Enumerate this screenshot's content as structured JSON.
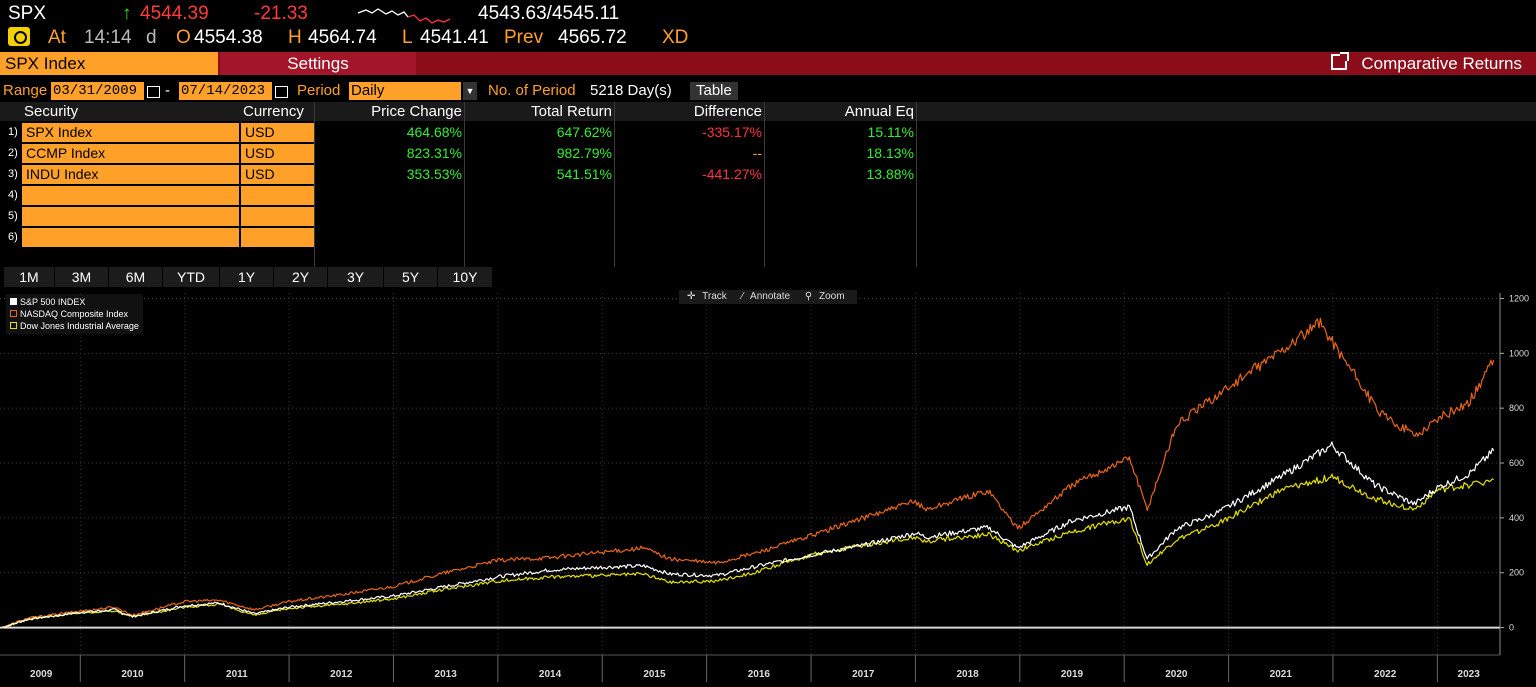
{
  "ticker": {
    "symbol": "SPX",
    "up_arrow": "↑",
    "last": "4544.39",
    "change": "-21.33",
    "bid_ask": "4543.63/4545.11",
    "at_label": "At",
    "time": "14:14",
    "time_suffix": "d",
    "open_label": "O",
    "open": "4554.38",
    "high_label": "H",
    "high": "4564.74",
    "low_label": "L",
    "low": "4541.41",
    "prev_label": "Prev",
    "prev": "4565.72",
    "flag": "XD"
  },
  "tabs": {
    "security": "SPX Index",
    "settings": "Settings",
    "comparative": "Comparative Returns"
  },
  "range": {
    "label": "Range",
    "start": "03/31/2009",
    "dash": "-",
    "end": "07/14/2023",
    "period_label": "Period",
    "period": "Daily",
    "num_label": "No. of Period",
    "num_value": "5218 Day(s)",
    "table_btn": "Table"
  },
  "table": {
    "headers": [
      "Security",
      "Currency",
      "Price Change",
      "Total Return",
      "Difference",
      "Annual Eq"
    ],
    "rows": [
      {
        "num": "1)",
        "security": "SPX Index",
        "currency": "USD",
        "price_change": "464.68%",
        "total_return": "647.62%",
        "difference": "-335.17%",
        "annual_eq": "15.11%"
      },
      {
        "num": "2)",
        "security": "CCMP Index",
        "currency": "USD",
        "price_change": "823.31%",
        "total_return": "982.79%",
        "difference": "--",
        "annual_eq": "18.13%"
      },
      {
        "num": "3)",
        "security": "INDU Index",
        "currency": "USD",
        "price_change": "353.53%",
        "total_return": "541.51%",
        "difference": "-441.27%",
        "annual_eq": "13.88%"
      },
      {
        "num": "4)",
        "security": "",
        "currency": "",
        "price_change": "",
        "total_return": "",
        "difference": "",
        "annual_eq": ""
      },
      {
        "num": "5)",
        "security": "",
        "currency": "",
        "price_change": "",
        "total_return": "",
        "difference": "",
        "annual_eq": ""
      },
      {
        "num": "6)",
        "security": "",
        "currency": "",
        "price_change": "",
        "total_return": "",
        "difference": "",
        "annual_eq": ""
      }
    ]
  },
  "period_buttons": [
    "1M",
    "3M",
    "6M",
    "YTD",
    "1Y",
    "2Y",
    "3Y",
    "5Y",
    "10Y"
  ],
  "chart_toolbar": {
    "track": "Track",
    "annotate": "Annotate",
    "zoom": "Zoom"
  },
  "colors": {
    "spx": "#ffffff",
    "ccmp": "#e8651a",
    "indu": "#e4e000",
    "accent": "#ffa028",
    "tab_bg": "#8b0e1a"
  },
  "chart_data": {
    "type": "line",
    "legend_position": "top-left",
    "grid": true,
    "ylim": [
      -100,
      1220
    ],
    "y_ticks": [
      0,
      200,
      400,
      600,
      800,
      1000,
      1200
    ],
    "x_ticks": [
      "2009",
      "2010",
      "2011",
      "2012",
      "2013",
      "2014",
      "2015",
      "2016",
      "2017",
      "2018",
      "2019",
      "2020",
      "2021",
      "2022",
      "2023"
    ],
    "series": [
      {
        "name": "S&P 500 INDEX",
        "color": "#ffffff",
        "x": [
          2009.25,
          2009.5,
          2010.0,
          2010.33,
          2010.5,
          2011.0,
          2011.33,
          2011.67,
          2012.0,
          2012.5,
          2013.0,
          2013.5,
          2014.0,
          2014.5,
          2015.0,
          2015.4,
          2015.65,
          2016.1,
          2016.5,
          2017.0,
          2017.5,
          2018.0,
          2018.1,
          2018.7,
          2018.98,
          2019.5,
          2020.05,
          2020.22,
          2020.5,
          2020.9,
          2021.5,
          2021.99,
          2022.4,
          2022.78,
          2023.0,
          2023.3,
          2023.54
        ],
        "y": [
          0,
          30,
          55,
          65,
          40,
          80,
          90,
          50,
          75,
          95,
          115,
          150,
          185,
          210,
          220,
          225,
          195,
          190,
          225,
          265,
          300,
          345,
          330,
          365,
          290,
          390,
          440,
          250,
          360,
          420,
          550,
          665,
          520,
          450,
          510,
          560,
          645
        ]
      },
      {
        "name": "NASDAQ Composite Index",
        "color": "#e8651a",
        "x": [
          2009.25,
          2009.5,
          2010.0,
          2010.33,
          2010.5,
          2011.0,
          2011.33,
          2011.67,
          2012.0,
          2012.5,
          2013.0,
          2013.5,
          2014.0,
          2014.5,
          2015.0,
          2015.4,
          2015.65,
          2016.1,
          2016.5,
          2017.0,
          2017.5,
          2018.0,
          2018.1,
          2018.7,
          2018.98,
          2019.5,
          2020.05,
          2020.22,
          2020.5,
          2020.9,
          2021.5,
          2021.88,
          2022.45,
          2022.8,
          2023.0,
          2023.3,
          2023.54
        ],
        "y": [
          0,
          35,
          60,
          75,
          45,
          95,
          100,
          65,
          95,
          120,
          150,
          200,
          245,
          255,
          275,
          290,
          250,
          235,
          275,
          335,
          400,
          460,
          430,
          500,
          360,
          520,
          620,
          430,
          740,
          850,
          1010,
          1110,
          780,
          700,
          760,
          820,
          975
        ]
      },
      {
        "name": "Dow Jones Industrial Average",
        "color": "#e4e000",
        "x": [
          2009.25,
          2009.5,
          2010.0,
          2010.33,
          2010.5,
          2011.0,
          2011.33,
          2011.67,
          2012.0,
          2012.5,
          2013.0,
          2013.5,
          2014.0,
          2014.5,
          2015.0,
          2015.4,
          2015.65,
          2016.1,
          2016.5,
          2017.0,
          2017.5,
          2018.0,
          2018.1,
          2018.7,
          2018.98,
          2019.5,
          2020.05,
          2020.22,
          2020.5,
          2020.9,
          2021.5,
          2021.99,
          2022.4,
          2022.78,
          2023.0,
          2023.3,
          2023.54
        ],
        "y": [
          0,
          30,
          55,
          60,
          40,
          75,
          85,
          45,
          70,
          85,
          105,
          140,
          170,
          185,
          190,
          195,
          165,
          170,
          205,
          265,
          300,
          330,
          315,
          340,
          280,
          350,
          400,
          230,
          320,
          380,
          500,
          550,
          470,
          430,
          500,
          520,
          540
        ]
      }
    ]
  }
}
